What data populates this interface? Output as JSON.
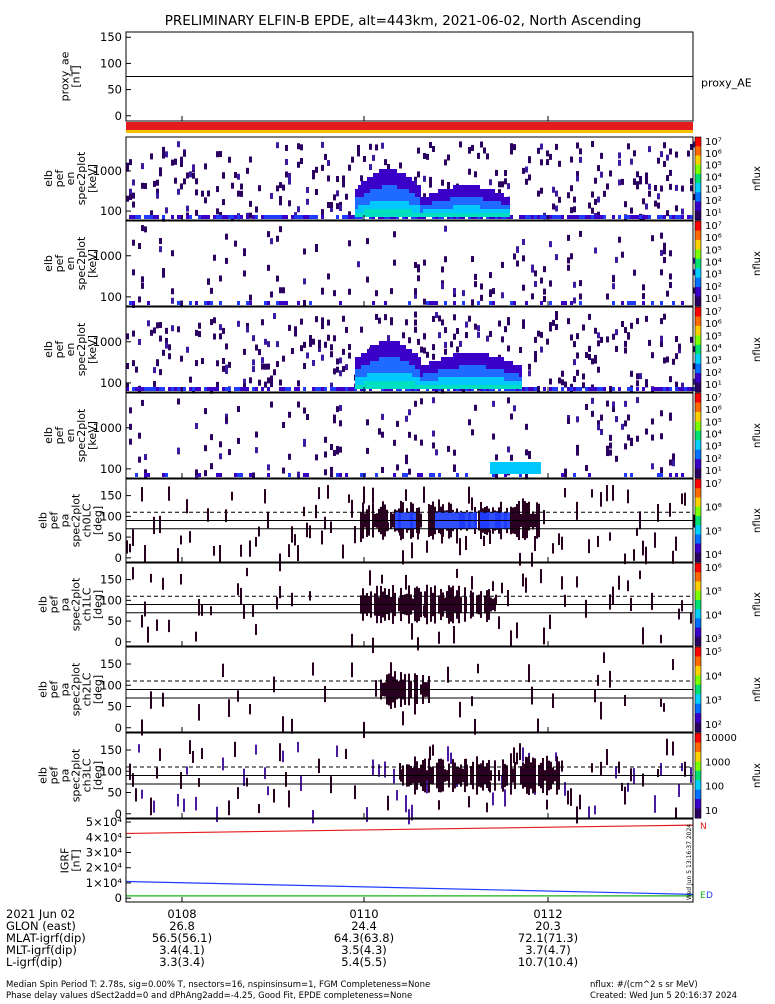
{
  "title": "PRELIMINARY ELFIN-B EPDE, alt=443km, 2021-06-02, North Ascending",
  "colors": {
    "red": "#e41a1c",
    "orange": "#f6c200",
    "blue": "#1f3bff",
    "green": "#19b319",
    "black": "#000000"
  },
  "chart_data": [
    {
      "type": "line",
      "name": "proxy_ae",
      "ylabel_lines": [
        "proxy_ae",
        "[nT]"
      ],
      "ylim": [
        -10,
        160
      ],
      "yticks": [
        "150",
        "100",
        "50",
        "0"
      ],
      "ytick_values": [
        150,
        100,
        50,
        0
      ],
      "legend": "proxy_AE",
      "series": [
        {
          "name": "proxy_AE",
          "values": [
            75,
            75
          ]
        }
      ]
    },
    {
      "type": "heatmap",
      "name": "spectrogram-1",
      "ylabel_lines": [
        "elb",
        "pef",
        "en",
        "spec2plot",
        "[keV]"
      ],
      "yscale": "log",
      "yticks": [
        "1000",
        "100"
      ],
      "ytick_values": [
        1000,
        100
      ],
      "colorbar_ticks": [
        "10⁷",
        "10⁶",
        "10⁵",
        "10⁴",
        "10³",
        "10²",
        "10¹"
      ],
      "colorbar_label": "nflux"
    },
    {
      "type": "heatmap",
      "name": "spectrogram-2",
      "ylabel_lines": [
        "elb",
        "pef",
        "en",
        "spec2plot",
        "[keV]"
      ],
      "yscale": "log",
      "yticks": [
        "1000",
        "100"
      ],
      "ytick_values": [
        1000,
        100
      ],
      "colorbar_ticks": [
        "10⁷",
        "10⁶",
        "10⁵",
        "10⁴",
        "10³",
        "10²",
        "10¹"
      ],
      "colorbar_label": "nflux"
    },
    {
      "type": "heatmap",
      "name": "spectrogram-3",
      "ylabel_lines": [
        "elb",
        "pef",
        "en",
        "spec2plot",
        "[keV]"
      ],
      "yscale": "log",
      "yticks": [
        "1000",
        "100"
      ],
      "ytick_values": [
        1000,
        100
      ],
      "colorbar_ticks": [
        "10⁷",
        "10⁶",
        "10⁵",
        "10⁴",
        "10³",
        "10²",
        "10¹"
      ],
      "colorbar_label": "nflux"
    },
    {
      "type": "heatmap",
      "name": "spectrogram-4",
      "ylabel_lines": [
        "elb",
        "pef",
        "en",
        "spec2plot",
        "[keV]"
      ],
      "yscale": "log",
      "yticks": [
        "1000",
        "100"
      ],
      "ytick_values": [
        1000,
        100
      ],
      "colorbar_ticks": [
        "10⁷",
        "10⁶",
        "10⁵",
        "10⁴",
        "10³",
        "10²",
        "10¹"
      ],
      "colorbar_label": "nflux"
    },
    {
      "type": "heatmap",
      "name": "pitch-angle-ch0",
      "ylabel_lines": [
        "elb",
        "pef",
        "pa",
        "spec2plot",
        "ch0LC",
        "[deg]"
      ],
      "ylim": [
        -10,
        190
      ],
      "yticks": [
        "150",
        "100",
        "50",
        "0"
      ],
      "ytick_values": [
        150,
        100,
        50,
        0
      ],
      "colorbar_ticks": [
        "10⁷",
        "10⁶",
        "10⁵",
        "10⁴"
      ],
      "colorbar_label": "nflux"
    },
    {
      "type": "heatmap",
      "name": "pitch-angle-ch1",
      "ylabel_lines": [
        "elb",
        "pef",
        "pa",
        "spec2plot",
        "ch1LC",
        "[deg]"
      ],
      "ylim": [
        -10,
        190
      ],
      "yticks": [
        "150",
        "100",
        "50",
        "0"
      ],
      "ytick_values": [
        150,
        100,
        50,
        0
      ],
      "colorbar_ticks": [
        "10⁶",
        "10⁵",
        "10⁴",
        "10³"
      ],
      "colorbar_label": "nflux"
    },
    {
      "type": "heatmap",
      "name": "pitch-angle-ch2",
      "ylabel_lines": [
        "elb",
        "pef",
        "pa",
        "spec2plot",
        "ch2LC",
        "[deg]"
      ],
      "ylim": [
        -10,
        190
      ],
      "yticks": [
        "150",
        "100",
        "50",
        "0"
      ],
      "ytick_values": [
        150,
        100,
        50,
        0
      ],
      "colorbar_ticks": [
        "10⁵",
        "10⁴",
        "10³",
        "10²"
      ],
      "colorbar_label": "nflux"
    },
    {
      "type": "heatmap",
      "name": "pitch-angle-ch3",
      "ylabel_lines": [
        "elb",
        "pef",
        "pa",
        "spec2plot",
        "ch3LC",
        "[deg]"
      ],
      "ylim": [
        -10,
        190
      ],
      "yticks": [
        "150",
        "100",
        "50",
        "0"
      ],
      "ytick_values": [
        150,
        100,
        50,
        0
      ],
      "colorbar_ticks": [
        "10000",
        "1000",
        "100",
        "10"
      ],
      "colorbar_label": "nflux"
    },
    {
      "type": "line",
      "name": "igrf",
      "ylabel_lines": [
        "IGRF",
        "[nT]"
      ],
      "ylim": [
        -2500,
        52000
      ],
      "yticks": [
        "5×10⁴",
        "4×10⁴",
        "3×10⁴",
        "2×10⁴",
        "1×10⁴",
        "0"
      ],
      "ytick_values": [
        50000,
        40000,
        30000,
        20000,
        10000,
        0
      ],
      "legend": [
        "N",
        "E",
        "D"
      ],
      "series": [
        {
          "name": "N",
          "color": "#e41a1c",
          "values": [
            42500,
            48000
          ]
        },
        {
          "name": "E",
          "color": "#1f3bff",
          "values": [
            11000,
            2500
          ]
        },
        {
          "name": "D",
          "color": "#19b319",
          "values": [
            1500,
            1500
          ]
        }
      ]
    }
  ],
  "x_axis": {
    "ticks": [
      "0108",
      "0110",
      "0112"
    ],
    "rows": [
      {
        "label": "2021 Jun 02",
        "values": [
          "0108",
          "0110",
          "0112"
        ]
      },
      {
        "label": "GLON (east)",
        "values": [
          "26.8",
          "24.4",
          "20.3"
        ]
      },
      {
        "label": "MLAT-igrf(dip)",
        "values": [
          "56.5(56.1)",
          "64.3(63.8)",
          "72.1(71.3)"
        ]
      },
      {
        "label": "MLT-igrf(dip)",
        "values": [
          "3.4(4.1)",
          "3.5(4.3)",
          "3.7(4.7)"
        ]
      },
      {
        "label": "L-igrf(dip)",
        "values": [
          "3.3(3.4)",
          "5.4(5.5)",
          "10.7(10.4)"
        ]
      }
    ]
  },
  "footer": {
    "line1": "Median Spin Period T: 2.78s, sig=0.00% T, nsectors=16, nspinsinsum=1, FGM Completeness=None",
    "line2": "Phase delay values dSect2add=0 and dPhAng2add=-4.25, Good Fit, EPDE completeness=None",
    "units": "nflux: #/(cm^2 s sr MeV)",
    "created": "Created: Wed Jun  5 20:16:37 2024",
    "vertical_stamp": "Wed Jun  5 13:16:37 2024"
  }
}
